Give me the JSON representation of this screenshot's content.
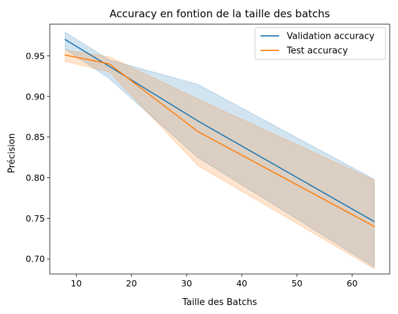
{
  "chart_data": {
    "type": "line",
    "title": "Accuracy en fontion de la taille des batchs",
    "xlabel": "Taille des Batchs",
    "ylabel": "Précision",
    "xlim": [
      5.2,
      66.8
    ],
    "ylim": [
      0.6815,
      0.989
    ],
    "xticks": [
      10,
      20,
      30,
      40,
      50,
      60
    ],
    "yticks": [
      0.7,
      0.75,
      0.8,
      0.85,
      0.9,
      0.95
    ],
    "ytick_labels": [
      "0.70",
      "0.75",
      "0.80",
      "0.85",
      "0.90",
      "0.95"
    ],
    "grid": false,
    "legend_position": "top-right",
    "x": [
      8,
      16,
      32,
      64
    ],
    "series": [
      {
        "name": "Validation accuracy",
        "color": "#1f77b4",
        "values": [
          0.97,
          0.937,
          0.87,
          0.746
        ],
        "band_upper": [
          0.979,
          0.945,
          0.915,
          0.798
        ],
        "band_lower": [
          0.958,
          0.922,
          0.825,
          0.69
        ]
      },
      {
        "name": "Test accuracy",
        "color": "#ff7f0e",
        "values": [
          0.951,
          0.94,
          0.857,
          0.74
        ],
        "band_upper": [
          0.957,
          0.949,
          0.897,
          0.797
        ],
        "band_lower": [
          0.943,
          0.93,
          0.815,
          0.688
        ]
      }
    ]
  }
}
